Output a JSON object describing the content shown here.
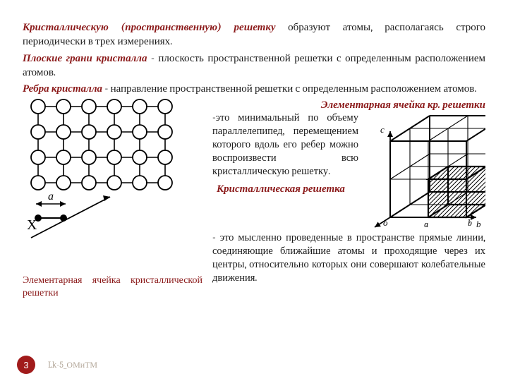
{
  "p1": {
    "term": "Кристаллическую (пространственную) решетку",
    "rest": " образуют атомы, располагаясь строго периодически в трех измерениях."
  },
  "p2": {
    "term": "Плоские грани кристалла",
    "rest": " - плоскость пространственной решетки с определенным расположением атомов."
  },
  "p3": {
    "term": "Ребра кристалла",
    "rest": " - направление пространственной решетки с определенным расположением атомов."
  },
  "unitcell": {
    "title": "Элементарная ячейка кр. решетки",
    "body": "-это минимальный по объему параллелепипед, перемещением которого вдоль его ребер можно воспроизвести всю кристаллическую решетку."
  },
  "lattice": {
    "title": "Кристаллическая решетка",
    "body": "- это мысленно проведенные в пространстве прямые линии, соединяющие ближайшие атомы и проходящие через их центры, относительно которых они совершают колебательные движения."
  },
  "caption": "Элементарная ячейка кристаллической решетки",
  "footer": {
    "page": "3",
    "code": "Lk-5_ОМиТМ"
  },
  "diagram": {
    "grid": {
      "cols": 6,
      "rows": 4,
      "cell": 36,
      "ox": 22,
      "oy": 12,
      "atom_r": 10,
      "stroke": "#000000",
      "fill": "#ffffff"
    },
    "axis": {
      "label_a": "a",
      "label_x": "X"
    },
    "cube": {
      "labels": [
        "a",
        "b",
        "c",
        "o"
      ]
    }
  },
  "colors": {
    "term": "#8b1a1a",
    "text": "#1a1a1a",
    "footer": "#b4a89a",
    "pagebg": "#a11b1b"
  }
}
